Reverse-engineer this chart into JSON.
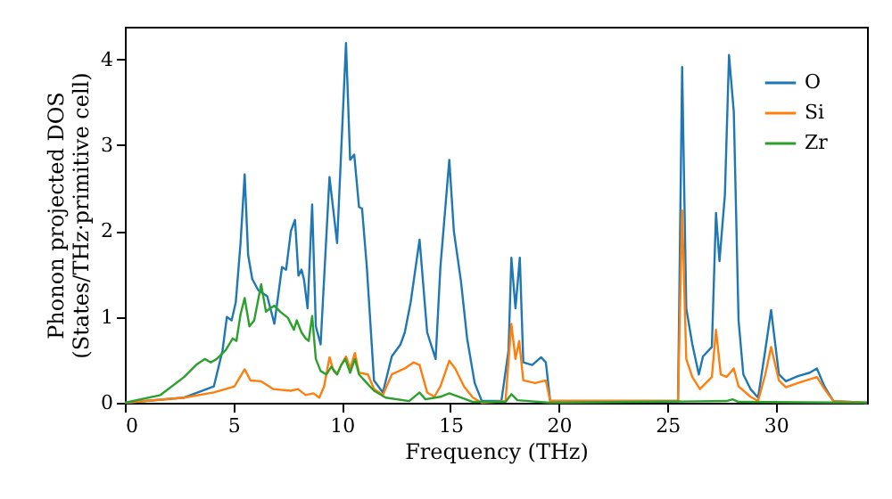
{
  "chart_data": {
    "type": "line",
    "xlabel": "Frequency (THz)",
    "ylabel": "Phonon projected DOS\n(States/THz·primitive cell)",
    "xlim": [
      0,
      34.2
    ],
    "ylim": [
      0,
      4.38
    ],
    "xticks": [
      0,
      5,
      10,
      15,
      20,
      25,
      30
    ],
    "yticks": [
      0,
      1,
      2,
      3,
      4
    ],
    "grid": false,
    "legend": "top right",
    "line_style": "solid",
    "marker": "none",
    "series": [
      {
        "name": "O",
        "color": "#1f77b4",
        "x": [
          0,
          2.73,
          4.1,
          4.5,
          4.7,
          4.92,
          5.11,
          5.33,
          5.52,
          5.68,
          5.87,
          6.15,
          6.56,
          6.89,
          7.24,
          7.43,
          7.65,
          7.84,
          8.0,
          8.14,
          8.25,
          8.42,
          8.63,
          8.8,
          9.02,
          9.43,
          9.78,
          10.19,
          10.38,
          10.57,
          10.79,
          10.93,
          11.15,
          11.48,
          11.89,
          12.3,
          12.7,
          12.9,
          13.17,
          13.58,
          13.93,
          14.32,
          14.54,
          14.95,
          15.16,
          15.49,
          15.77,
          16.12,
          16.45,
          17.35,
          17.68,
          17.81,
          18.0,
          18.2,
          18.36,
          18.77,
          19.18,
          19.4,
          19.6,
          25.49,
          25.68,
          25.87,
          26.15,
          26.45,
          26.64,
          27.05,
          27.24,
          27.4,
          27.65,
          27.84,
          28.06,
          28.28,
          28.5,
          28.83,
          29.18,
          29.51,
          29.78,
          30.14,
          30.46,
          31.01,
          31.56,
          31.89,
          32.24,
          32.65,
          34.2
        ],
        "values": [
          0,
          0.06,
          0.19,
          0.61,
          1.0,
          0.96,
          1.17,
          1.86,
          2.66,
          1.72,
          1.44,
          1.31,
          1.24,
          0.92,
          1.58,
          1.55,
          2.0,
          2.13,
          1.48,
          1.55,
          1.44,
          1.1,
          2.31,
          0.89,
          0.68,
          2.63,
          1.86,
          4.19,
          2.83,
          2.89,
          2.28,
          2.26,
          1.58,
          0.26,
          0.12,
          0.54,
          0.68,
          0.82,
          1.17,
          1.9,
          0.82,
          0.51,
          1.58,
          2.83,
          2.0,
          1.41,
          0.75,
          0.23,
          0.02,
          0.02,
          0.61,
          1.69,
          1.1,
          1.69,
          0.47,
          0.44,
          0.53,
          0.47,
          0.02,
          0.02,
          3.91,
          1.1,
          0.68,
          0.33,
          0.54,
          0.65,
          2.21,
          1.65,
          2.42,
          4.05,
          3.39,
          0.96,
          0.33,
          0.16,
          0.06,
          0.61,
          1.08,
          0.33,
          0.25,
          0.31,
          0.35,
          0.4,
          0.19,
          0.02,
          0
        ]
      },
      {
        "name": "Si",
        "color": "#ff7f0e",
        "x": [
          0,
          2.73,
          4.1,
          5.05,
          5.52,
          5.79,
          6.28,
          6.83,
          7.65,
          7.98,
          8.33,
          8.69,
          8.96,
          9.18,
          9.43,
          9.62,
          9.78,
          9.97,
          10.19,
          10.38,
          10.6,
          10.79,
          11.2,
          11.48,
          11.89,
          12.3,
          12.9,
          13.3,
          13.58,
          13.93,
          14.26,
          14.54,
          14.95,
          15.22,
          15.63,
          16.04,
          16.45,
          17.54,
          17.81,
          18.0,
          18.17,
          18.36,
          18.91,
          19.4,
          19.6,
          25.49,
          25.68,
          25.87,
          26.15,
          26.5,
          27.05,
          27.24,
          27.46,
          27.73,
          28.06,
          28.28,
          28.83,
          29.18,
          29.51,
          29.78,
          30.14,
          30.46,
          31.01,
          31.89,
          32.24,
          32.65,
          34.2
        ],
        "values": [
          0,
          0.06,
          0.12,
          0.19,
          0.39,
          0.26,
          0.25,
          0.16,
          0.14,
          0.16,
          0.09,
          0.11,
          0.06,
          0.19,
          0.53,
          0.37,
          0.33,
          0.44,
          0.54,
          0.4,
          0.58,
          0.35,
          0.33,
          0.16,
          0.09,
          0.33,
          0.4,
          0.47,
          0.44,
          0.12,
          0.07,
          0.19,
          0.49,
          0.4,
          0.19,
          0.06,
          0,
          0.02,
          0.92,
          0.51,
          0.72,
          0.26,
          0.23,
          0.26,
          0.02,
          0.02,
          2.24,
          0.51,
          0.3,
          0.16,
          0.3,
          0.85,
          0.33,
          0.3,
          0.4,
          0.19,
          0.07,
          0.02,
          0.33,
          0.65,
          0.26,
          0.18,
          0.23,
          0.3,
          0.16,
          0.02,
          0
        ]
      },
      {
        "name": "Zr",
        "color": "#2ca02c",
        "x": [
          0,
          1.64,
          2.73,
          3.28,
          3.69,
          3.96,
          4.23,
          4.64,
          4.97,
          5.14,
          5.33,
          5.52,
          5.74,
          5.96,
          6.28,
          6.5,
          6.69,
          6.89,
          7.16,
          7.51,
          7.79,
          7.92,
          8.14,
          8.33,
          8.47,
          8.63,
          8.8,
          9.02,
          9.29,
          9.51,
          9.78,
          9.97,
          10.16,
          10.38,
          10.6,
          10.79,
          11.15,
          11.48,
          12.02,
          13.1,
          13.58,
          13.85,
          14.54,
          14.95,
          15.49,
          16.04,
          17.54,
          17.81,
          18.09,
          19.6,
          27.73,
          28.0,
          28.28,
          34.2
        ],
        "values": [
          0,
          0.09,
          0.3,
          0.44,
          0.51,
          0.47,
          0.51,
          0.61,
          0.75,
          0.72,
          1.03,
          1.22,
          0.89,
          0.96,
          1.38,
          1.06,
          1.1,
          1.13,
          1.06,
          0.99,
          0.85,
          0.96,
          0.82,
          0.75,
          0.72,
          1.01,
          0.51,
          0.37,
          0.33,
          0.42,
          0.33,
          0.44,
          0.51,
          0.35,
          0.51,
          0.33,
          0.23,
          0.14,
          0.06,
          0.02,
          0.12,
          0.04,
          0.07,
          0.11,
          0.06,
          0.01,
          0.01,
          0.1,
          0.03,
          0,
          0.02,
          0.04,
          0.01,
          0
        ]
      }
    ]
  }
}
